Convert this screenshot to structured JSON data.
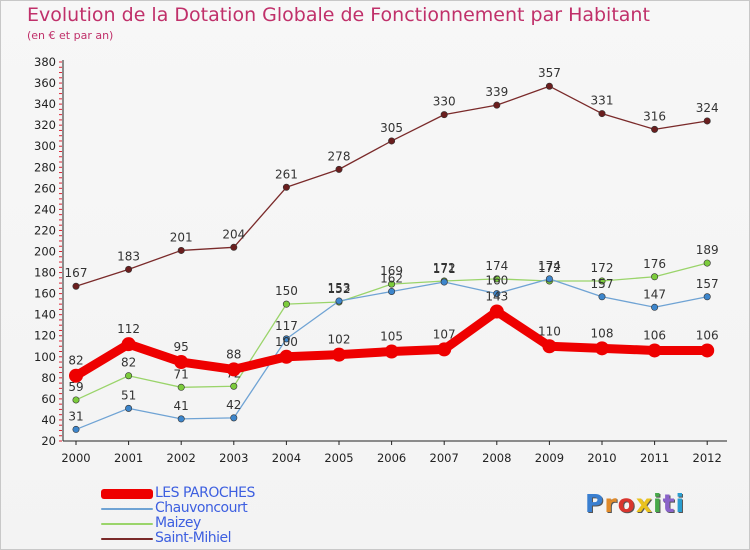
{
  "header": {
    "title": "Evolution de la Dotation Globale de Fonctionnement par Habitant",
    "subtitle": "(en € et par an)"
  },
  "logo": {
    "text": "Proxiti",
    "letter_colors": [
      "#3a7fd0",
      "#e08a2a",
      "#d9352e",
      "#e9c21f",
      "#47a84a",
      "#8a63c9",
      "#2a9ed0"
    ]
  },
  "chart_data": {
    "type": "line",
    "title": "Evolution de la Dotation Globale de Fonctionnement par Habitant",
    "subtitle": "(en € et par an)",
    "xlabel": "",
    "ylabel": "",
    "categories": [
      "2000",
      "2001",
      "2002",
      "2003",
      "2004",
      "2005",
      "2006",
      "2007",
      "2008",
      "2009",
      "2010",
      "2011",
      "2012"
    ],
    "ylim": [
      20,
      380
    ],
    "yticks": [
      20,
      40,
      60,
      80,
      100,
      120,
      140,
      160,
      180,
      200,
      220,
      240,
      260,
      280,
      300,
      320,
      340,
      360,
      380
    ],
    "grid": false,
    "legend_position": "bottom-left",
    "series": [
      {
        "name": "Saint-Mihiel",
        "color": "#7a2a2a",
        "dot_color": "#6a1e1e",
        "width": "thin",
        "values": [
          167,
          183,
          201,
          204,
          261,
          278,
          305,
          330,
          339,
          357,
          331,
          316,
          324
        ]
      },
      {
        "name": "Maizey",
        "color": "#9ad46a",
        "dot_color": "#7ccc3c",
        "width": "thin",
        "values": [
          59,
          82,
          71,
          72,
          150,
          152,
          169,
          172,
          174,
          172,
          172,
          176,
          189
        ]
      },
      {
        "name": "Chauvoncourt",
        "color": "#6fa3d4",
        "dot_color": "#3d86cc",
        "width": "thin",
        "values": [
          31,
          51,
          41,
          42,
          117,
          153,
          162,
          171,
          160,
          174,
          157,
          147,
          157
        ]
      },
      {
        "name": "LES PAROCHES",
        "color": "#ee0000",
        "dot_color": "#ee0000",
        "width": "thick",
        "values": [
          82,
          112,
          95,
          88,
          100,
          102,
          105,
          107,
          143,
          110,
          108,
          106,
          106
        ]
      }
    ],
    "legend": [
      "LES PAROCHES",
      "Chauvoncourt",
      "Maizey",
      "Saint-Mihiel"
    ]
  }
}
